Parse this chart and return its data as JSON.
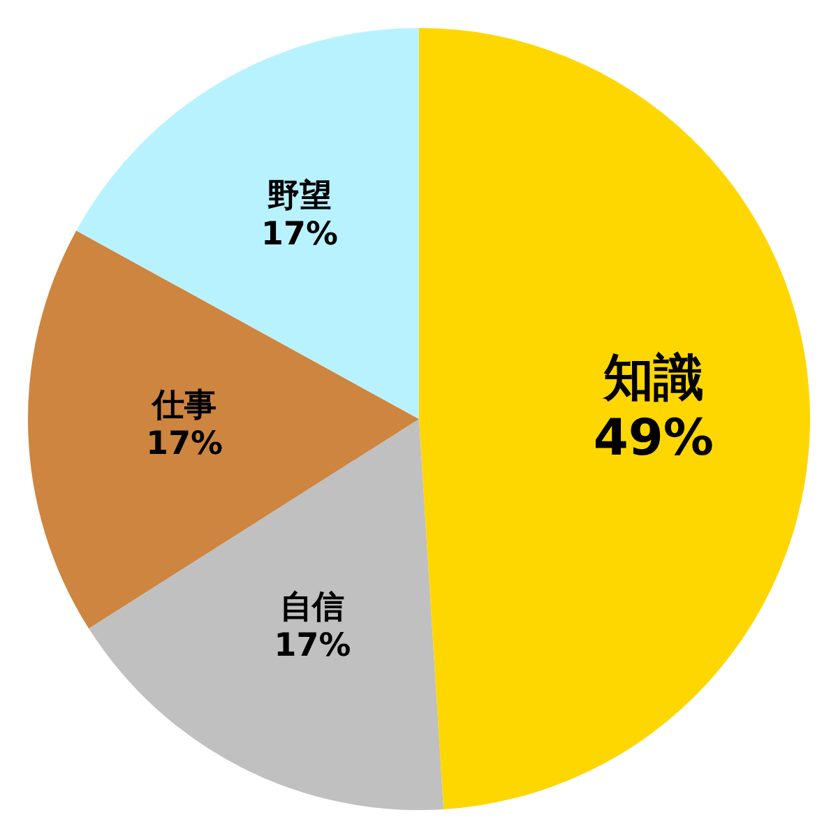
{
  "chart_data": {
    "type": "pie",
    "categories": [
      "知識",
      "自信",
      "仕事",
      "野望"
    ],
    "values": [
      49,
      17,
      17,
      17
    ],
    "value_labels": [
      "49%",
      "17%",
      "17%",
      "17%"
    ],
    "colors": [
      "#ffd700",
      "#c0c0c0",
      "#cd853f",
      "#b9f2ff"
    ],
    "legend": false
  }
}
